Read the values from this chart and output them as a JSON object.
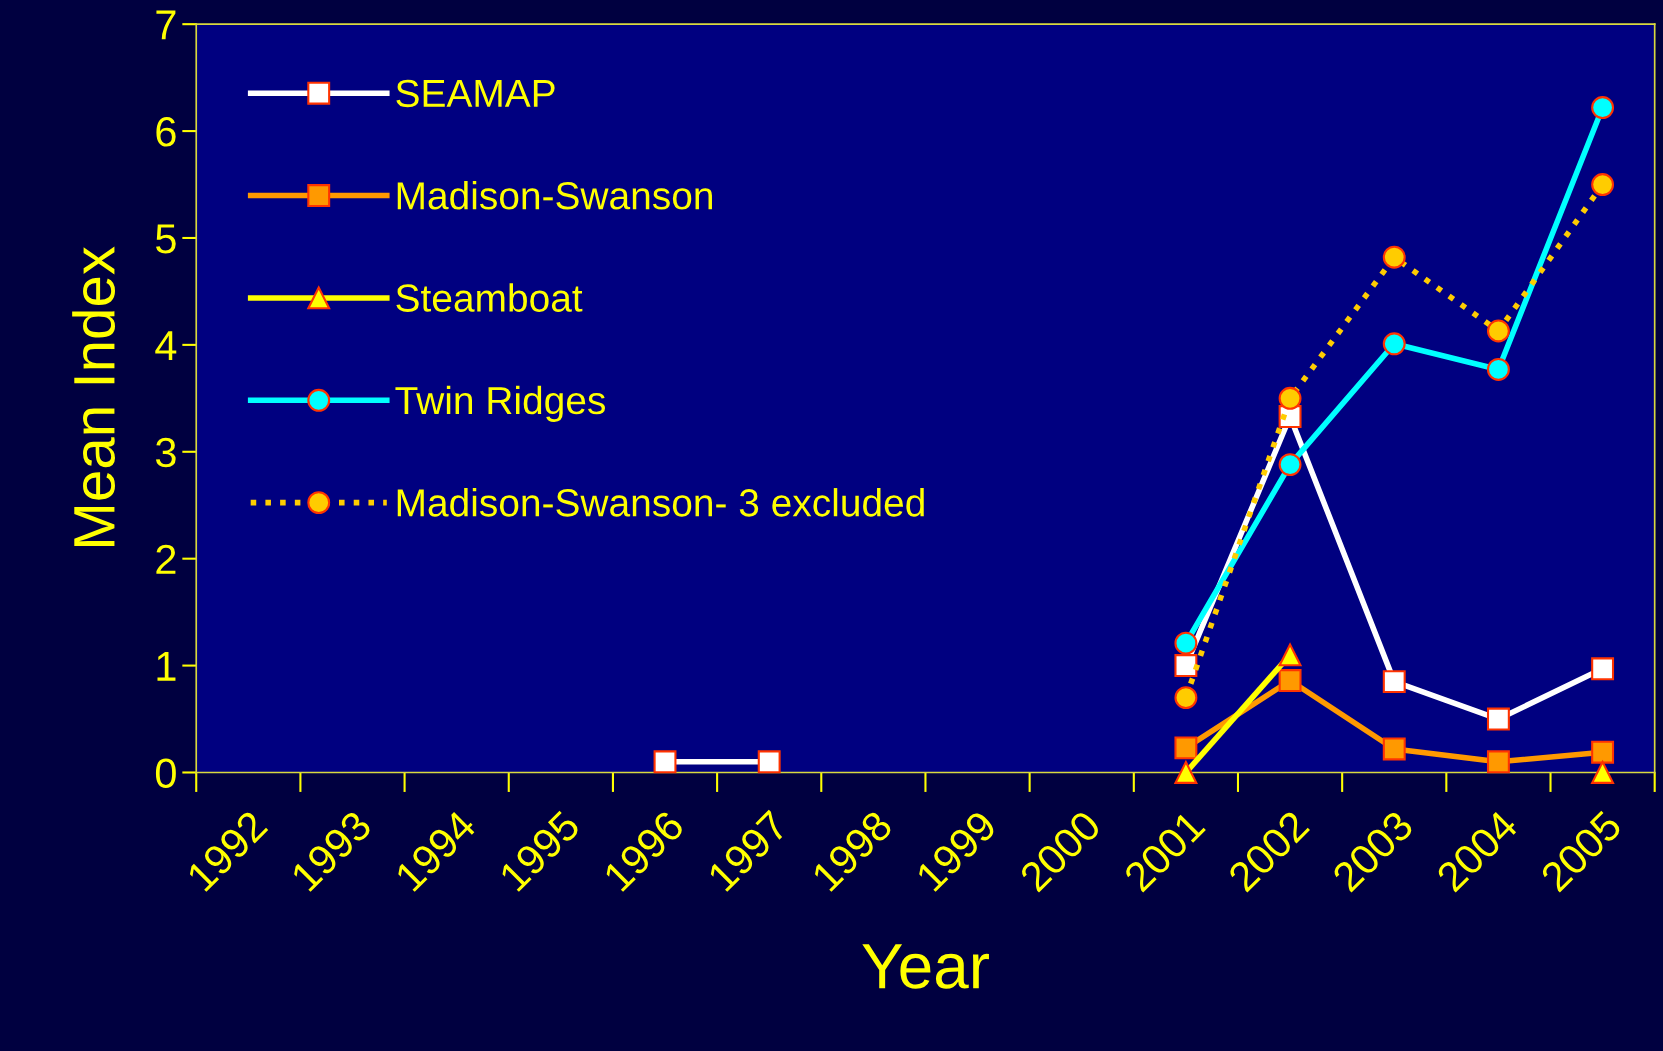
{
  "chart_data": {
    "type": "line",
    "xlabel": "Year",
    "ylabel": "Mean Index",
    "categories": [
      "1992",
      "1993",
      "1994",
      "1995",
      "1996",
      "1997",
      "1998",
      "1999",
      "2000",
      "2001",
      "2002",
      "2003",
      "2004",
      "2005"
    ],
    "ylim": [
      0,
      7
    ],
    "yticks": [
      0,
      1,
      2,
      3,
      4,
      5,
      6,
      7
    ],
    "grid": false,
    "legend": "top left",
    "series": [
      {
        "name": "SEAMAP",
        "color": "#ffffff",
        "marker": "square",
        "line_style": "solid",
        "values": [
          null,
          null,
          null,
          null,
          0.1,
          0.1,
          null,
          null,
          null,
          1.0,
          3.33,
          0.85,
          0.5,
          0.97
        ]
      },
      {
        "name": "Madison-Swanson",
        "color": "#ff9900",
        "marker": "square",
        "line_style": "solid",
        "values": [
          null,
          null,
          null,
          null,
          null,
          null,
          null,
          null,
          null,
          0.23,
          0.86,
          0.22,
          0.1,
          0.19
        ]
      },
      {
        "name": "Steamboat",
        "color": "#ffff00",
        "marker": "triangle",
        "line_style": "solid",
        "values": [
          null,
          null,
          null,
          null,
          null,
          null,
          null,
          null,
          null,
          0.0,
          1.1,
          null,
          null,
          0.0
        ]
      },
      {
        "name": "Twin Ridges",
        "color": "#00ffff",
        "marker": "circle",
        "line_style": "solid",
        "values": [
          null,
          null,
          null,
          null,
          null,
          null,
          null,
          null,
          null,
          1.21,
          2.88,
          4.01,
          3.77,
          6.22
        ]
      },
      {
        "name": "Madison-Swanson- 3 excluded",
        "color": "#ffcc00",
        "marker": "circle",
        "line_style": "dotted",
        "values": [
          null,
          null,
          null,
          null,
          null,
          null,
          null,
          null,
          null,
          0.7,
          3.5,
          4.82,
          4.13,
          5.5
        ]
      }
    ]
  }
}
